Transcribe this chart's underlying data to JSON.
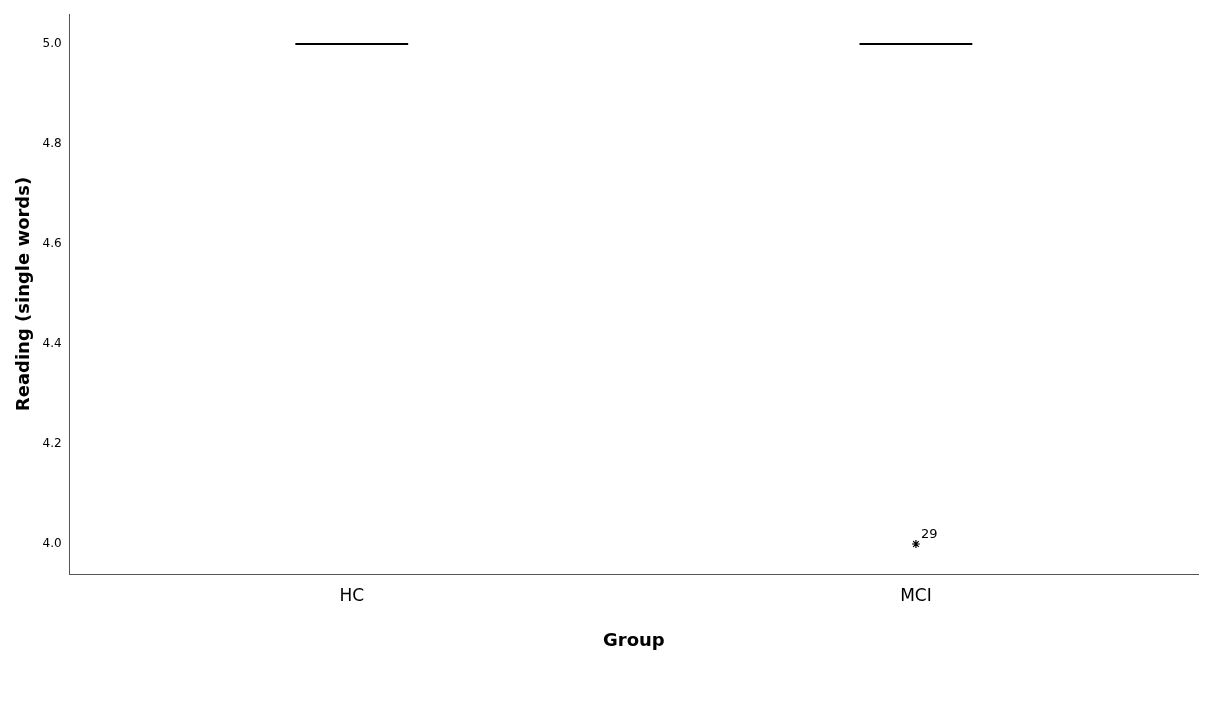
{
  "chart_data": {
    "type": "box",
    "xlabel": "Group",
    "ylabel": "Reading (single words)",
    "categories": [
      "HC",
      "MCI"
    ],
    "boxes": [
      {
        "low": 5,
        "q1": 5,
        "median": 5,
        "q3": 5,
        "high": 5
      },
      {
        "low": 5,
        "q1": 5,
        "median": 5,
        "q3": 5,
        "high": 5,
        "outliers": [
          4
        ]
      }
    ],
    "marker": "star",
    "ylim": [
      3.94,
      5.06
    ],
    "yticks": [
      {
        "value": 4,
        "label": "4.0"
      },
      4.2,
      4.4,
      4.6,
      4.8,
      {
        "value": 5,
        "label": "5.0"
      }
    ],
    "grid": false,
    "legend": false,
    "annotations": [
      "29"
    ]
  }
}
